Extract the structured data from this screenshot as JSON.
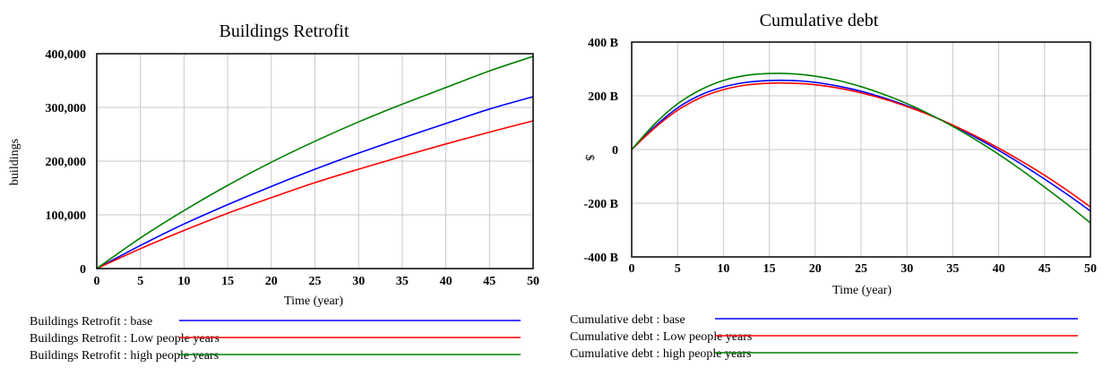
{
  "chart_data": [
    {
      "type": "line",
      "title": "Buildings Retrofit",
      "xlabel": "Time (year)",
      "ylabel": "buildings",
      "xlim": [
        0,
        50
      ],
      "ylim": [
        0,
        400000
      ],
      "x_ticks": [
        "0",
        "5",
        "10",
        "15",
        "20",
        "25",
        "30",
        "35",
        "40",
        "45",
        "50"
      ],
      "y_ticks": [
        "0",
        "100,000",
        "200,000",
        "300,000",
        "400,000"
      ],
      "grid": true,
      "legend_position": "bottom",
      "x": [
        0,
        5,
        10,
        15,
        20,
        25,
        30,
        35,
        40,
        45,
        50
      ],
      "series": [
        {
          "name": "Buildings Retrofit : base",
          "color": "#0000ff",
          "values": [
            0,
            43000,
            83000,
            119000,
            153000,
            185000,
            215000,
            243000,
            270000,
            297000,
            320000
          ]
        },
        {
          "name": "Buildings Retrofit : Low people years",
          "color": "#ff0000",
          "values": [
            0,
            37000,
            71000,
            103000,
            132000,
            160000,
            185000,
            209000,
            232000,
            254000,
            275000
          ]
        },
        {
          "name": "Buildings Retrofit : high people years",
          "color": "#008000",
          "values": [
            0,
            57000,
            108000,
            155000,
            198000,
            237000,
            273000,
            306000,
            337000,
            368000,
            395000
          ]
        }
      ]
    },
    {
      "type": "line",
      "title": "Cumulative debt",
      "xlabel": "Time (year)",
      "ylabel": "$",
      "xlim": [
        0,
        50
      ],
      "ylim": [
        -400,
        400
      ],
      "y_unit": "B",
      "x_ticks": [
        "0",
        "5",
        "10",
        "15",
        "20",
        "25",
        "30",
        "35",
        "40",
        "45",
        "50"
      ],
      "y_ticks": [
        "-400 B",
        "-200 B",
        "0",
        "200 B",
        "400 B"
      ],
      "grid": true,
      "legend_position": "bottom",
      "x": [
        0,
        2.5,
        5,
        7.5,
        10,
        12.5,
        15,
        17.5,
        20,
        22.5,
        25,
        27.5,
        30,
        32.5,
        35,
        37.5,
        40,
        42.5,
        45,
        47.5,
        50
      ],
      "series": [
        {
          "name": "Cumulative debt : base",
          "color": "#0000ff",
          "values": [
            0,
            85,
            155,
            203,
            233,
            250,
            257,
            257,
            250,
            236,
            217,
            192,
            163,
            129,
            89,
            45,
            -3,
            -55,
            -110,
            -168,
            -229
          ]
        },
        {
          "name": "Cumulative debt : Low people years",
          "color": "#ff0000",
          "values": [
            0,
            80,
            146,
            193,
            223,
            240,
            247,
            247,
            241,
            229,
            211,
            188,
            160,
            128,
            91,
            50,
            5,
            -44,
            -96,
            -153,
            -214
          ]
        },
        {
          "name": "Cumulative debt : high people years",
          "color": "#008000",
          "values": [
            0,
            95,
            170,
            222,
            257,
            276,
            283,
            282,
            273,
            257,
            234,
            205,
            171,
            131,
            86,
            36,
            -18,
            -77,
            -140,
            -205,
            -273
          ]
        }
      ]
    }
  ]
}
